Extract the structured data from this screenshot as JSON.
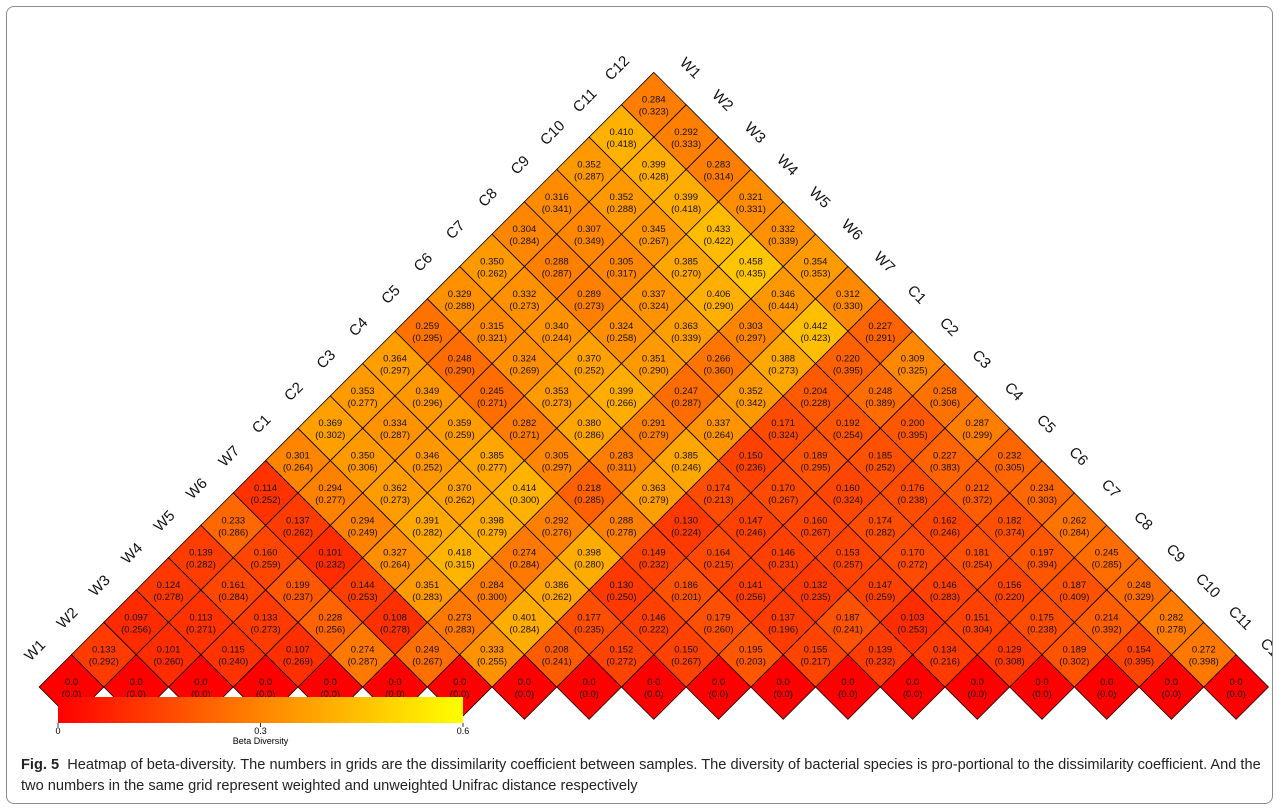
{
  "chart_data": {
    "type": "heatmap",
    "samples": [
      "W1",
      "W2",
      "W3",
      "W4",
      "W5",
      "W6",
      "W7",
      "C1",
      "C2",
      "C3",
      "C4",
      "C5",
      "C6",
      "C7",
      "C8",
      "C9",
      "C10",
      "C11",
      "C12"
    ],
    "rows": [
      [
        "0.133",
        "0.101",
        "0.115",
        "0.107",
        "0.274",
        "0.249",
        "0.333",
        "0.208",
        "0.152",
        "0.150",
        "0.195",
        "0.155",
        "0.139",
        "0.134",
        "0.129",
        "0.189",
        "0.154",
        "0.272"
      ],
      [
        "0.097",
        "0.113",
        "0.133",
        "0.228",
        "0.108",
        "0.273",
        "0.401",
        "0.177",
        "0.146",
        "0.179",
        "0.137",
        "0.187",
        "0.103",
        "0.151",
        "0.175",
        "0.214",
        "0.282"
      ],
      [
        "0.124",
        "0.161",
        "0.199",
        "0.144",
        "0.351",
        "0.284",
        "0.386",
        "0.130",
        "0.186",
        "0.141",
        "0.132",
        "0.147",
        "0.146",
        "0.156",
        "0.187",
        "0.248"
      ],
      [
        "0.139",
        "0.160",
        "0.101",
        "0.327",
        "0.418",
        "0.274",
        "0.398",
        "0.149",
        "0.164",
        "0.146",
        "0.153",
        "0.170",
        "0.181",
        "0.197",
        "0.245"
      ],
      [
        "0.233",
        "0.137",
        "0.294",
        "0.391",
        "0.398",
        "0.292",
        "0.288",
        "0.130",
        "0.147",
        "0.160",
        "0.174",
        "0.162",
        "0.182",
        "0.262"
      ],
      [
        "0.114",
        "0.294",
        "0.362",
        "0.370",
        "0.414",
        "0.218",
        "0.363",
        "0.174",
        "0.170",
        "0.160",
        "0.176",
        "0.212",
        "0.234"
      ],
      [
        "0.301",
        "0.350",
        "0.346",
        "0.385",
        "0.305",
        "0.283",
        "0.385",
        "0.150",
        "0.189",
        "0.185",
        "0.227",
        "0.232"
      ],
      [
        "0.369",
        "0.334",
        "0.359",
        "0.282",
        "0.380",
        "0.291",
        "0.337",
        "0.171",
        "0.192",
        "0.200",
        "0.287"
      ],
      [
        "0.353",
        "0.349",
        "0.245",
        "0.353",
        "0.399",
        "0.247",
        "0.352",
        "0.204",
        "0.248",
        "0.258"
      ],
      [
        "0.364",
        "0.248",
        "0.324",
        "0.370",
        "0.351",
        "0.266",
        "0.388",
        "0.220",
        "0.309"
      ],
      [
        "0.259",
        "0.315",
        "0.340",
        "0.324",
        "0.363",
        "0.303",
        "0.442",
        "0.227"
      ],
      [
        "0.329",
        "0.332",
        "0.289",
        "0.337",
        "0.406",
        "0.346",
        "0.312"
      ],
      [
        "0.350",
        "0.288",
        "0.305",
        "0.385",
        "0.458",
        "0.354"
      ],
      [
        "0.304",
        "0.307",
        "0.345",
        "0.433",
        "0.332"
      ],
      [
        "0.316",
        "0.352",
        "0.399",
        "0.321"
      ],
      [
        "0.352",
        "0.399",
        "0.283"
      ],
      [
        "0.410",
        "0.292"
      ],
      [
        "0.284"
      ]
    ],
    "rows_unweighted": [
      [
        "(0.292)",
        "(0.260)",
        "(0.240)",
        "(0.269)",
        "(0.287)",
        "(0.267)",
        "(0.255)",
        "(0.241)",
        "(0.272)",
        "(0.267)",
        "(0.203)",
        "(0.217)",
        "(0.232)",
        "(0.216)",
        "(0.308)",
        "(0.302)",
        "(0.395)",
        "(0.398)"
      ],
      [
        "(0.256)",
        "(0.271)",
        "(0.273)",
        "(0.256)",
        "(0.278)",
        "(0.283)",
        "(0.284)",
        "(0.235)",
        "(0.222)",
        "(0.260)",
        "(0.196)",
        "(0.241)",
        "(0.253)",
        "(0.304)",
        "(0.238)",
        "(0.392)",
        "(0.278)"
      ],
      [
        "(0.278)",
        "(0.284)",
        "(0.237)",
        "(0.253)",
        "(0.283)",
        "(0.300)",
        "(0.262)",
        "(0.250)",
        "(0.201)",
        "(0.256)",
        "(0.235)",
        "(0.259)",
        "(0.283)",
        "(0.220)",
        "(0.409)",
        "(0.329)"
      ],
      [
        "(0.282)",
        "(0.259)",
        "(0.232)",
        "(0.264)",
        "(0.315)",
        "(0.284)",
        "(0.280)",
        "(0.232)",
        "(0.215)",
        "(0.231)",
        "(0.257)",
        "(0.272)",
        "(0.254)",
        "(0.394)",
        "(0.285)"
      ],
      [
        "(0.286)",
        "(0.262)",
        "(0.249)",
        "(0.282)",
        "(0.279)",
        "(0.276)",
        "(0.278)",
        "(0.224)",
        "(0.246)",
        "(0.267)",
        "(0.282)",
        "(0.246)",
        "(0.374)",
        "(0.284)"
      ],
      [
        "(0.252)",
        "(0.277)",
        "(0.273)",
        "(0.262)",
        "(0.300)",
        "(0.285)",
        "(0.279)",
        "(0.213)",
        "(0.267)",
        "(0.324)",
        "(0.238)",
        "(0.372)",
        "(0.303)"
      ],
      [
        "(0.264)",
        "(0.306)",
        "(0.252)",
        "(0.277)",
        "(0.297)",
        "(0.311)",
        "(0.246)",
        "(0.236)",
        "(0.295)",
        "(0.252)",
        "(0.383)",
        "(0.305)"
      ],
      [
        "(0.302)",
        "(0.287)",
        "(0.259)",
        "(0.271)",
        "(0.286)",
        "(0.279)",
        "(0.264)",
        "(0.324)",
        "(0.254)",
        "(0.395)",
        "(0.299)"
      ],
      [
        "(0.277)",
        "(0.296)",
        "(0.271)",
        "(0.273)",
        "(0.266)",
        "(0.287)",
        "(0.342)",
        "(0.228)",
        "(0.389)",
        "(0.306)"
      ],
      [
        "(0.297)",
        "(0.290)",
        "(0.269)",
        "(0.252)",
        "(0.290)",
        "(0.360)",
        "(0.273)",
        "(0.395)",
        "(0.325)"
      ],
      [
        "(0.295)",
        "(0.321)",
        "(0.244)",
        "(0.258)",
        "(0.339)",
        "(0.297)",
        "(0.423)",
        "(0.291)"
      ],
      [
        "(0.288)",
        "(0.273)",
        "(0.273)",
        "(0.324)",
        "(0.290)",
        "(0.444)",
        "(0.330)"
      ],
      [
        "(0.262)",
        "(0.287)",
        "(0.317)",
        "(0.270)",
        "(0.435)",
        "(0.353)"
      ],
      [
        "(0.284)",
        "(0.349)",
        "(0.267)",
        "(0.422)",
        "(0.339)"
      ],
      [
        "(0.341)",
        "(0.288)",
        "(0.418)",
        "(0.331)"
      ],
      [
        "(0.287)",
        "(0.428)",
        "(0.314)"
      ],
      [
        "(0.418)",
        "(0.333)"
      ],
      [
        "(0.323)"
      ]
    ],
    "diagonal_weighted": "0.0",
    "diagonal_unweighted": "(0.0)",
    "colorbar": {
      "min": 0,
      "max": 0.6,
      "ticks": [
        "0",
        "0.3",
        "0.6"
      ],
      "label": "Beta Diversity",
      "colors": [
        "#ff0000",
        "#ff8400",
        "#ffff00"
      ]
    }
  },
  "caption": {
    "label": "Fig. 5",
    "text": "Heatmap of beta-diversity. The numbers in grids are the dissimilarity coefficient between samples. The diversity of bacterial species is pro-portional to the dissimilarity coefficient. And the two numbers in the same grid represent weighted and unweighted Unifrac distance respectively"
  }
}
